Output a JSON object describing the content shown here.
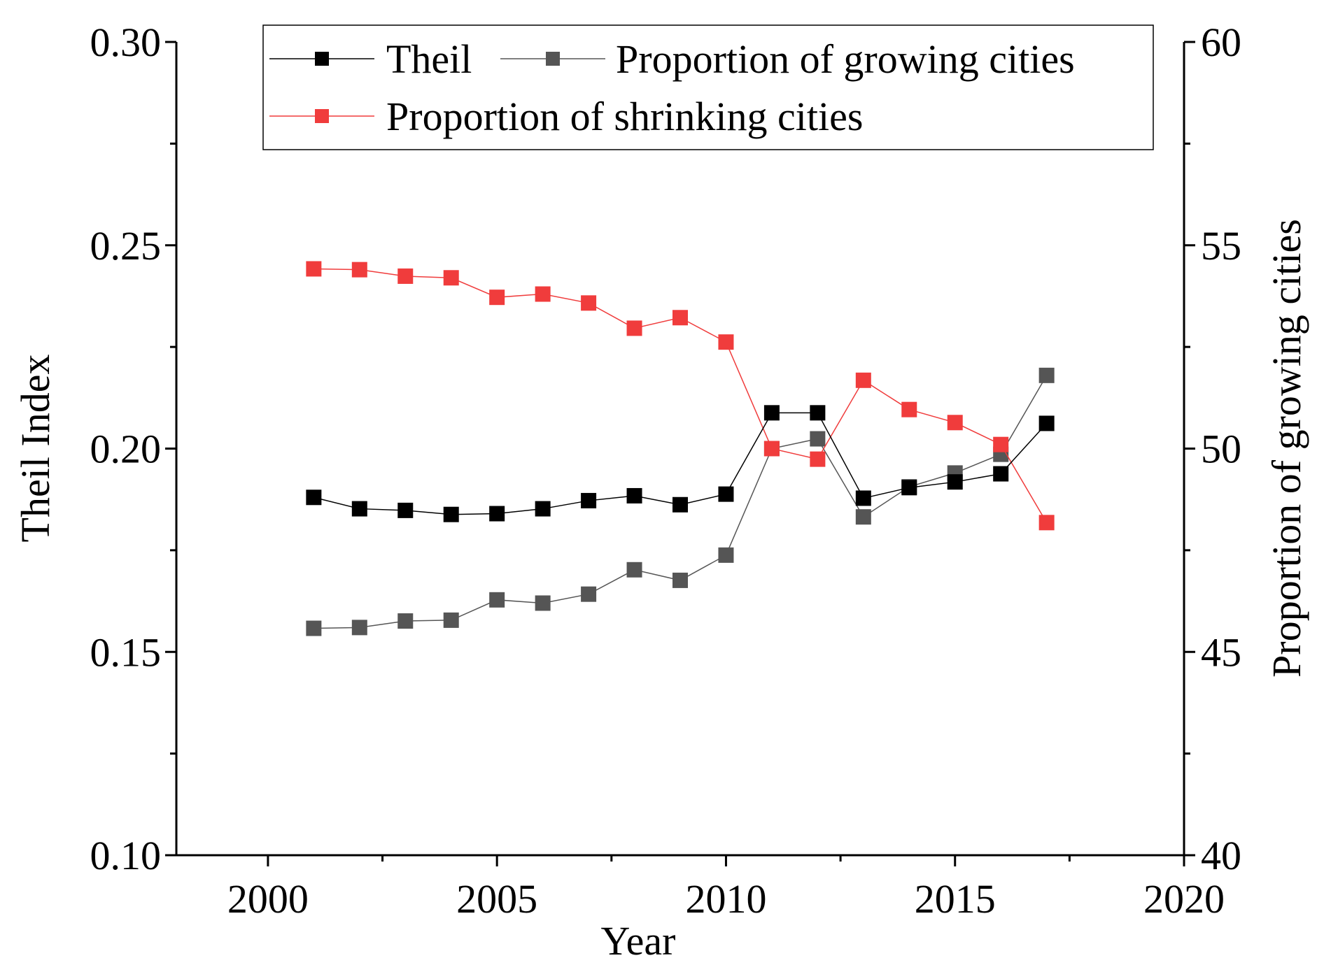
{
  "chart_data": {
    "type": "line",
    "title": "",
    "xlabel": "Year",
    "ylabel_left": "Theil Index",
    "ylabel_right": "Proportion of growing cities",
    "xlim": [
      1998,
      2020
    ],
    "ylim_left": [
      0.1,
      0.3
    ],
    "ylim_right": [
      40,
      60
    ],
    "x_ticks": [
      2000,
      2005,
      2010,
      2015,
      2020
    ],
    "x_tick_labels": [
      "2000",
      "2005",
      "2010",
      "2015",
      "2020"
    ],
    "y_left_ticks": [
      0.1,
      0.15,
      0.2,
      0.25,
      0.3
    ],
    "y_left_tick_labels": [
      "0.10",
      "0.15",
      "0.20",
      "0.25",
      "0.30"
    ],
    "y_right_ticks": [
      40,
      45,
      50,
      55,
      60
    ],
    "y_right_tick_labels": [
      "40",
      "45",
      "50",
      "55",
      "60"
    ],
    "grid": false,
    "legend_position": "top",
    "x": [
      2001,
      2002,
      2003,
      2004,
      2005,
      2006,
      2007,
      2008,
      2009,
      2010,
      2011,
      2012,
      2013,
      2014,
      2015,
      2016,
      2017
    ],
    "series": [
      {
        "name": "Theil",
        "axis": "left",
        "color": "#000000",
        "values": [
          0.188,
          0.1852,
          0.1848,
          0.1838,
          0.184,
          0.1852,
          0.1872,
          0.1884,
          0.1862,
          0.1888,
          0.2088,
          0.2088,
          0.1878,
          0.1904,
          0.1918,
          0.1938,
          0.2062
        ]
      },
      {
        "name": "Proportion of growing cities",
        "axis": "right",
        "color": "#555555",
        "values": [
          45.58,
          45.6,
          45.76,
          45.78,
          46.28,
          46.2,
          46.42,
          47.02,
          46.76,
          47.38,
          50.0,
          50.24,
          48.32,
          49.06,
          49.4,
          49.86,
          51.8
        ]
      },
      {
        "name": "Proportion of shrinking cities",
        "axis": "right",
        "color": "#f03c3c",
        "values": [
          54.42,
          54.4,
          54.24,
          54.2,
          53.72,
          53.8,
          53.58,
          52.96,
          53.22,
          52.62,
          50.0,
          49.74,
          51.68,
          50.96,
          50.64,
          50.1,
          48.18
        ]
      }
    ]
  }
}
